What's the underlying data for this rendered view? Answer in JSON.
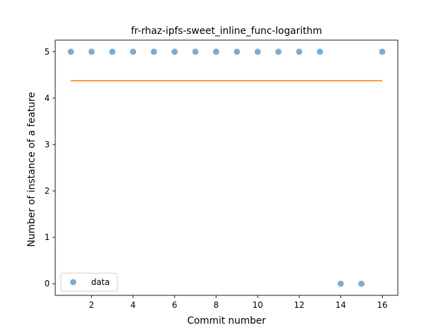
{
  "chart_data": {
    "type": "scatter",
    "title": "fr-rhaz-ipfs-sweet_inline_func-logarithm",
    "xlabel": "Commit number",
    "ylabel": "Number of instance of a feature",
    "xlim": [
      0.25,
      16.75
    ],
    "ylim": [
      -0.25,
      5.25
    ],
    "xticks": [
      2,
      4,
      6,
      8,
      10,
      12,
      14,
      16
    ],
    "yticks": [
      0,
      1,
      2,
      3,
      4,
      5
    ],
    "grid": false,
    "legend": {
      "position": "lower-left",
      "entries": [
        "data"
      ]
    },
    "series": [
      {
        "name": "data",
        "kind": "scatter",
        "color": "#1f77b4",
        "x": [
          1,
          2,
          3,
          4,
          5,
          6,
          7,
          8,
          9,
          10,
          11,
          12,
          13,
          14,
          15,
          16
        ],
        "y": [
          5,
          5,
          5,
          5,
          5,
          5,
          5,
          5,
          5,
          5,
          5,
          5,
          5,
          0,
          0,
          5
        ]
      },
      {
        "kind": "line",
        "color": "#ff7f0e",
        "x": [
          1,
          16
        ],
        "y": [
          4.375,
          4.375
        ]
      }
    ]
  }
}
